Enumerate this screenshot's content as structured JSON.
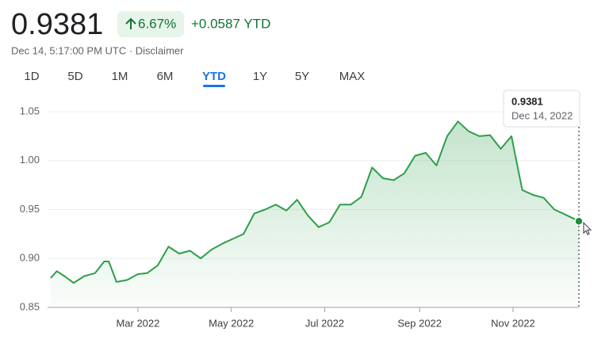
{
  "header": {
    "price": "0.9381",
    "change_percent": "6.67%",
    "change": "+0.0587 YTD",
    "subtitle": "Dec 14, 5:17:00 PM UTC · Disclaimer"
  },
  "tabs": {
    "items": [
      "1D",
      "5D",
      "1M",
      "6M",
      "YTD",
      "1Y",
      "5Y",
      "MAX"
    ],
    "selected": "YTD"
  },
  "chart_data": {
    "type": "area",
    "color": "#2e9e4a",
    "grid": true,
    "x": [
      "2022-01-03",
      "2022-01-07",
      "2022-01-12",
      "2022-01-18",
      "2022-01-25",
      "2022-02-01",
      "2022-02-07",
      "2022-02-10",
      "2022-02-15",
      "2022-02-22",
      "2022-03-01",
      "2022-03-07",
      "2022-03-14",
      "2022-03-21",
      "2022-03-28",
      "2022-04-04",
      "2022-04-11",
      "2022-04-18",
      "2022-04-25",
      "2022-05-02",
      "2022-05-09",
      "2022-05-16",
      "2022-05-23",
      "2022-05-30",
      "2022-06-06",
      "2022-06-13",
      "2022-06-20",
      "2022-06-27",
      "2022-07-04",
      "2022-07-11",
      "2022-07-18",
      "2022-07-25",
      "2022-08-01",
      "2022-08-08",
      "2022-08-15",
      "2022-08-22",
      "2022-08-29",
      "2022-09-05",
      "2022-09-12",
      "2022-09-19",
      "2022-09-26",
      "2022-10-03",
      "2022-10-10",
      "2022-10-17",
      "2022-10-24",
      "2022-10-31",
      "2022-11-07",
      "2022-11-14",
      "2022-11-21",
      "2022-11-28",
      "2022-12-05",
      "2022-12-14"
    ],
    "values": [
      0.88,
      0.887,
      0.882,
      0.875,
      0.882,
      0.885,
      0.897,
      0.897,
      0.876,
      0.878,
      0.884,
      0.885,
      0.893,
      0.912,
      0.905,
      0.908,
      0.9,
      0.909,
      0.915,
      0.92,
      0.925,
      0.946,
      0.95,
      0.955,
      0.949,
      0.96,
      0.944,
      0.932,
      0.937,
      0.955,
      0.955,
      0.963,
      0.993,
      0.982,
      0.98,
      0.987,
      1.005,
      1.008,
      0.995,
      1.025,
      1.04,
      1.03,
      1.025,
      1.026,
      1.012,
      1.025,
      0.97,
      0.965,
      0.962,
      0.95,
      0.945,
      0.9381
    ],
    "xlim": [
      "2022-01-01",
      "2022-12-14"
    ],
    "xticks": [
      {
        "value": "2022-03-01",
        "label": "Mar 2022"
      },
      {
        "value": "2022-05-01",
        "label": "May 2022"
      },
      {
        "value": "2022-07-01",
        "label": "Jul 2022"
      },
      {
        "value": "2022-09-01",
        "label": "Sep 2022"
      },
      {
        "value": "2022-11-01",
        "label": "Nov 2022"
      }
    ],
    "ylim": [
      0.85,
      1.067
    ],
    "yticks": [
      0.85,
      {
        "value": 0.9,
        "label": "0.90"
      },
      0.95,
      {
        "value": 1.0,
        "label": "1.00"
      },
      1.05
    ],
    "tooltip": {
      "label": "0.9381",
      "date": "Dec 14, 2022"
    }
  }
}
